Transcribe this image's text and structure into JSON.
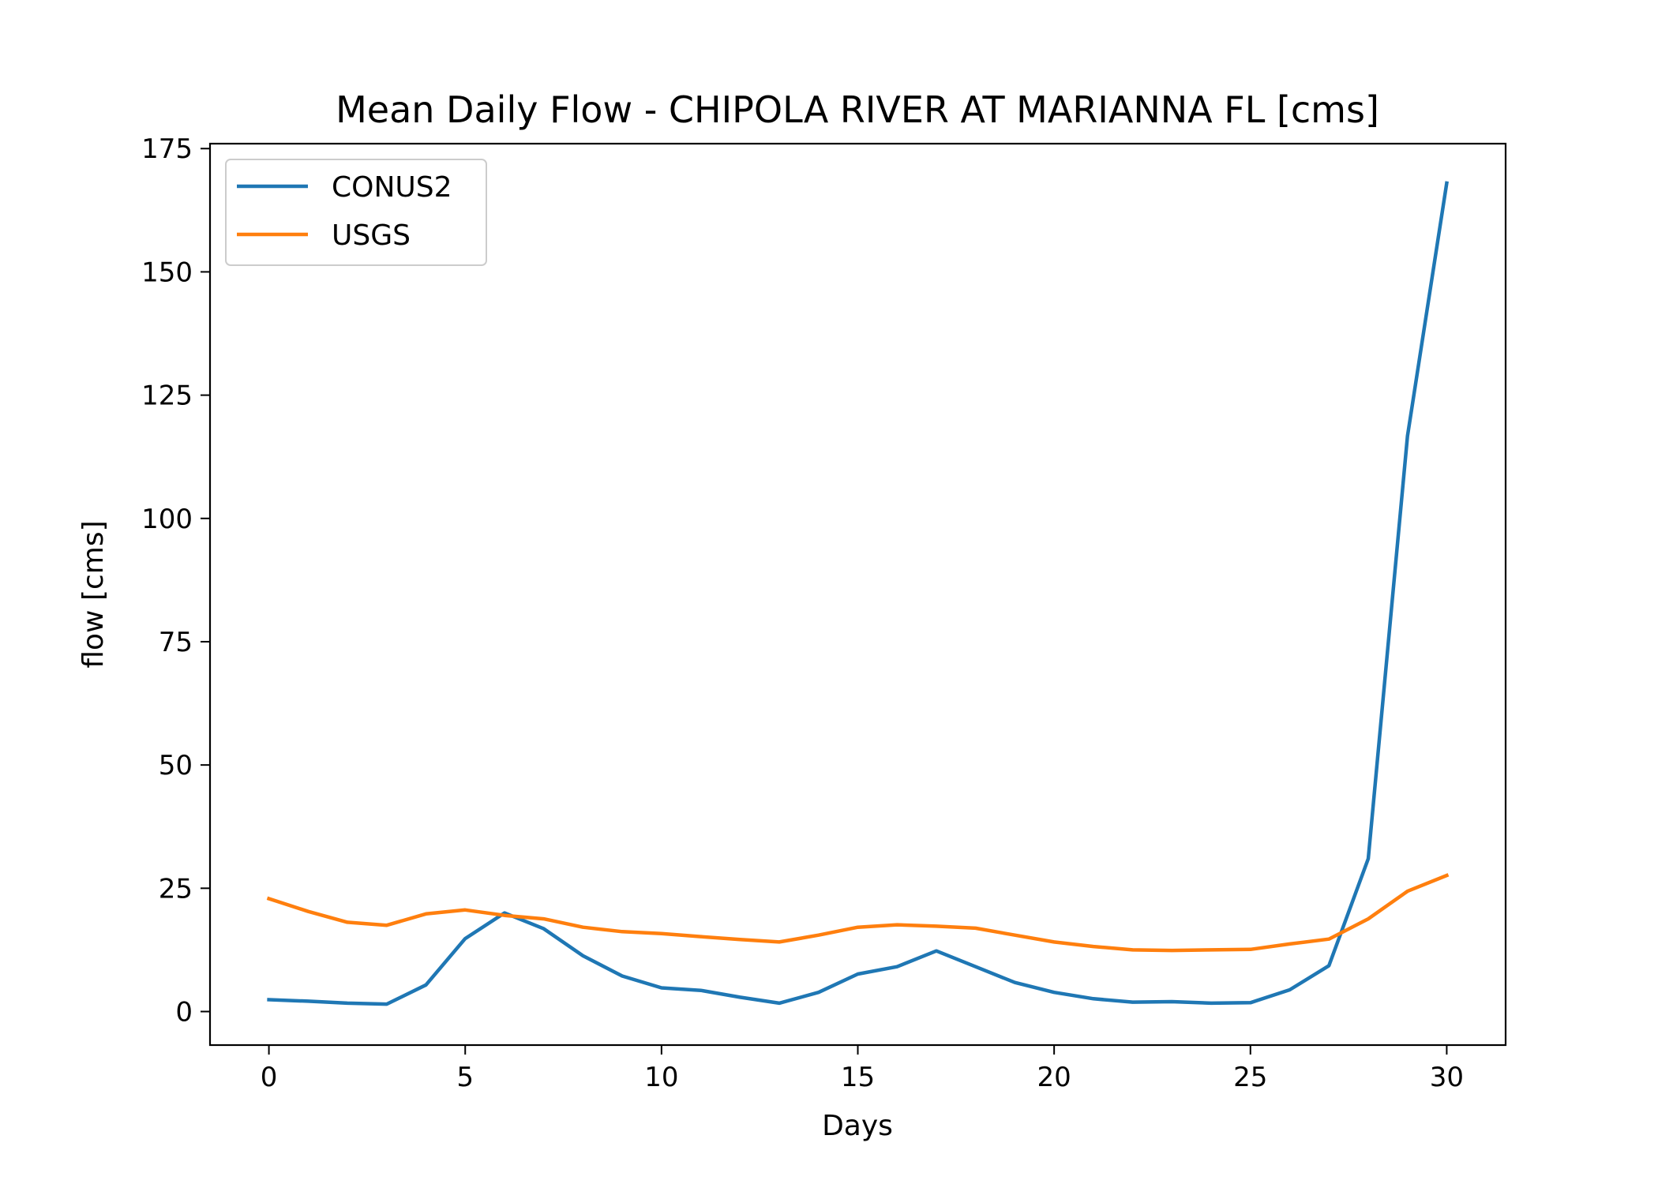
{
  "chart_data": {
    "type": "line",
    "title": "Mean Daily Flow - CHIPOLA RIVER AT MARIANNA FL [cms]",
    "xlabel": "Days",
    "ylabel": "flow [cms]",
    "xlim": [
      -1.5,
      31.5
    ],
    "ylim": [
      -6.8,
      176
    ],
    "xticks": [
      0,
      5,
      10,
      15,
      20,
      25,
      30
    ],
    "yticks": [
      0,
      25,
      50,
      75,
      100,
      125,
      150,
      175
    ],
    "grid": false,
    "legend": "top-left",
    "x": [
      0,
      1,
      2,
      3,
      4,
      5,
      6,
      7,
      8,
      9,
      10,
      11,
      12,
      13,
      14,
      15,
      16,
      17,
      18,
      19,
      20,
      21,
      22,
      23,
      24,
      25,
      26,
      27,
      28,
      29,
      30
    ],
    "series": [
      {
        "name": "CONUS2",
        "color": "#1f77b4",
        "values": [
          2.4,
          2.1,
          1.7,
          1.5,
          5.4,
          14.8,
          20.0,
          16.8,
          11.3,
          7.2,
          4.8,
          4.3,
          2.9,
          1.7,
          3.9,
          7.6,
          9.1,
          12.3,
          9.1,
          5.9,
          3.9,
          2.6,
          1.9,
          2.0,
          1.7,
          1.8,
          4.4,
          9.3,
          31.0,
          116.7,
          168.0
        ]
      },
      {
        "name": "USGS",
        "color": "#ff7f0e",
        "values": [
          22.9,
          20.3,
          18.1,
          17.5,
          19.8,
          20.6,
          19.5,
          18.8,
          17.1,
          16.2,
          15.8,
          15.2,
          14.6,
          14.1,
          15.5,
          17.1,
          17.6,
          17.3,
          16.9,
          15.5,
          14.1,
          13.2,
          12.5,
          12.4,
          12.5,
          12.6,
          13.7,
          14.7,
          18.8,
          24.4,
          27.6
        ]
      }
    ]
  }
}
